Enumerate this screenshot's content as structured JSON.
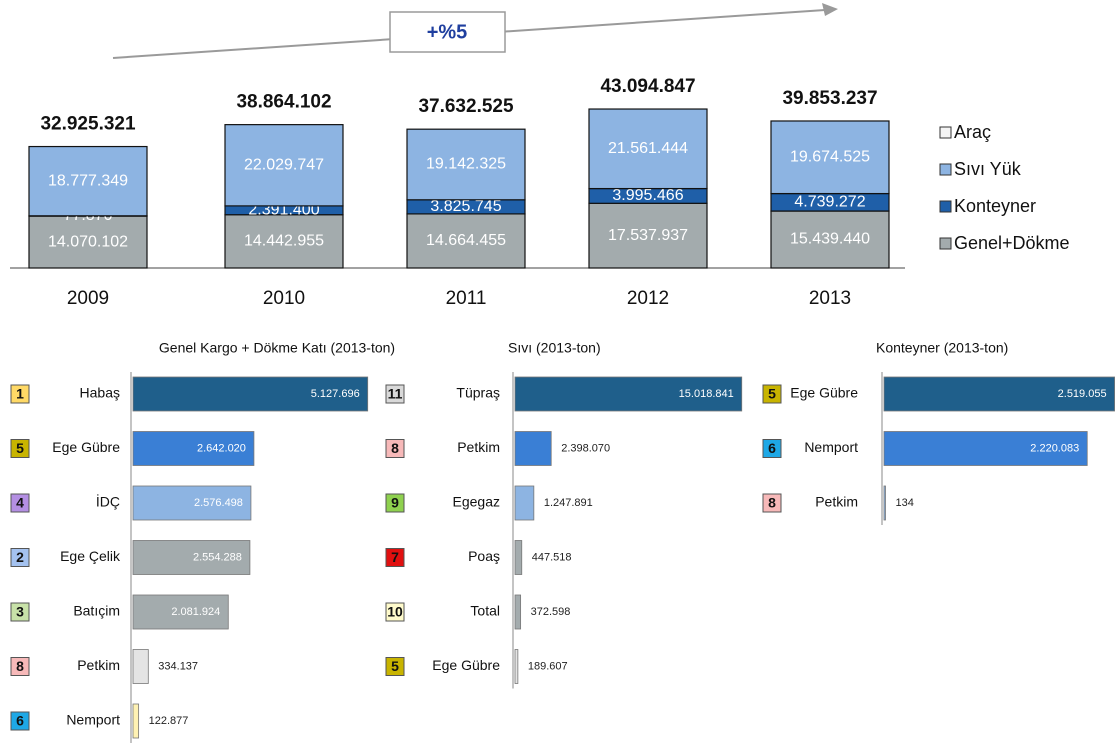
{
  "chart_data": [
    {
      "type": "stacked_bar",
      "annotation": "+%5",
      "categories": [
        "2009",
        "2010",
        "2011",
        "2012",
        "2013"
      ],
      "series": [
        {
          "name": "Araç",
          "color": "#f4f4f4",
          "values": [
            null,
            null,
            null,
            null,
            null
          ]
        },
        {
          "name": "Sıvı Yük",
          "color": "#8db4e2",
          "values": [
            18777349,
            22029747,
            19142325,
            21561444,
            19674525
          ],
          "value_labels": [
            "18.777.349",
            "22.029.747",
            "19.142.325",
            "21.561.444",
            "19.674.525"
          ]
        },
        {
          "name": "Konteyner",
          "color": "#1f5fa8",
          "values": [
            77870,
            2391400,
            3825745,
            3995466,
            4739272
          ],
          "value_labels": [
            "77.870",
            "2.391.400",
            "3.825.745",
            "3.995.466",
            "4.739.272"
          ]
        },
        {
          "name": "Genel+Dökme",
          "color": "#a3abad",
          "values": [
            14070102,
            14442955,
            14664455,
            17537937,
            15439440
          ],
          "value_labels": [
            "14.070.102",
            "14.442.955",
            "14.664.455",
            "17.537.937",
            "15.439.440"
          ]
        }
      ],
      "totals": {
        "values": [
          32925321,
          38864102,
          37632525,
          43094847,
          39853237
        ],
        "value_labels": [
          "32.925.321",
          "38.864.102",
          "37.632.525",
          "43.094.847",
          "39.853.237"
        ]
      },
      "ylim": [
        0,
        45000000
      ],
      "legend": "right"
    },
    {
      "type": "hbar",
      "title": "Genel Kargo + Dökme Katı (2013-ton)",
      "ranks": [
        1,
        5,
        4,
        2,
        3,
        8,
        6
      ],
      "rank_colors": [
        "#ffd966",
        "#c8b400",
        "#b48fe3",
        "#a4c2f0",
        "#c8e2a8",
        "#f7b9b9",
        "#1ea8e6"
      ],
      "categories": [
        "Habaş",
        "Ege Gübre",
        "İDÇ",
        "Ege Çelik",
        "Batıçim",
        "Petkim",
        "Nemport"
      ],
      "values": [
        5127696,
        2642020,
        2576498,
        2554288,
        2081924,
        334137,
        122877
      ],
      "value_labels": [
        "5.127.696",
        "2.642.020",
        "2.576.498",
        "2.554.288",
        "2.081.924",
        "334.137",
        "122.877"
      ],
      "colors": [
        "#1f5f8b",
        "#3a7fd5",
        "#8db4e2",
        "#a3abad",
        "#a3abad",
        "#e4e4e4",
        "#fff2b3"
      ],
      "xlim": [
        0,
        5200000
      ]
    },
    {
      "type": "hbar",
      "title": "Sıvı  (2013-ton)",
      "ranks": [
        11,
        8,
        9,
        7,
        10,
        5
      ],
      "rank_colors": [
        "#d9d9d9",
        "#f7b9b9",
        "#8fd14f",
        "#e01010",
        "#fffbcc",
        "#c8b400"
      ],
      "categories": [
        "Tüpraş",
        "Petkim",
        "Egegaz",
        "Poaş",
        "Total",
        "Ege Gübre"
      ],
      "values": [
        15018841,
        2398070,
        1247891,
        447518,
        372598,
        189607
      ],
      "value_labels": [
        "15.018.841",
        "2.398.070",
        "1.247.891",
        "447.518",
        "372.598",
        "189.607"
      ],
      "colors": [
        "#1f5f8b",
        "#3a7fd5",
        "#8db4e2",
        "#a3abad",
        "#a3abad",
        "#e4e4e4"
      ],
      "xlim": [
        0,
        15500000
      ]
    },
    {
      "type": "hbar",
      "title": "Konteyner  (2013-ton)",
      "ranks": [
        5,
        6,
        8
      ],
      "rank_colors": [
        "#c8b400",
        "#1ea8e6",
        "#f7b9b9"
      ],
      "categories": [
        "Ege Gübre",
        "Nemport",
        "Petkim"
      ],
      "values": [
        2519055,
        2220083,
        134
      ],
      "value_labels": [
        "2.519.055",
        "2.220.083",
        "134"
      ],
      "colors": [
        "#1f5f8b",
        "#3a7fd5",
        "#8db4e2"
      ],
      "xlim": [
        0,
        2600000
      ]
    }
  ]
}
